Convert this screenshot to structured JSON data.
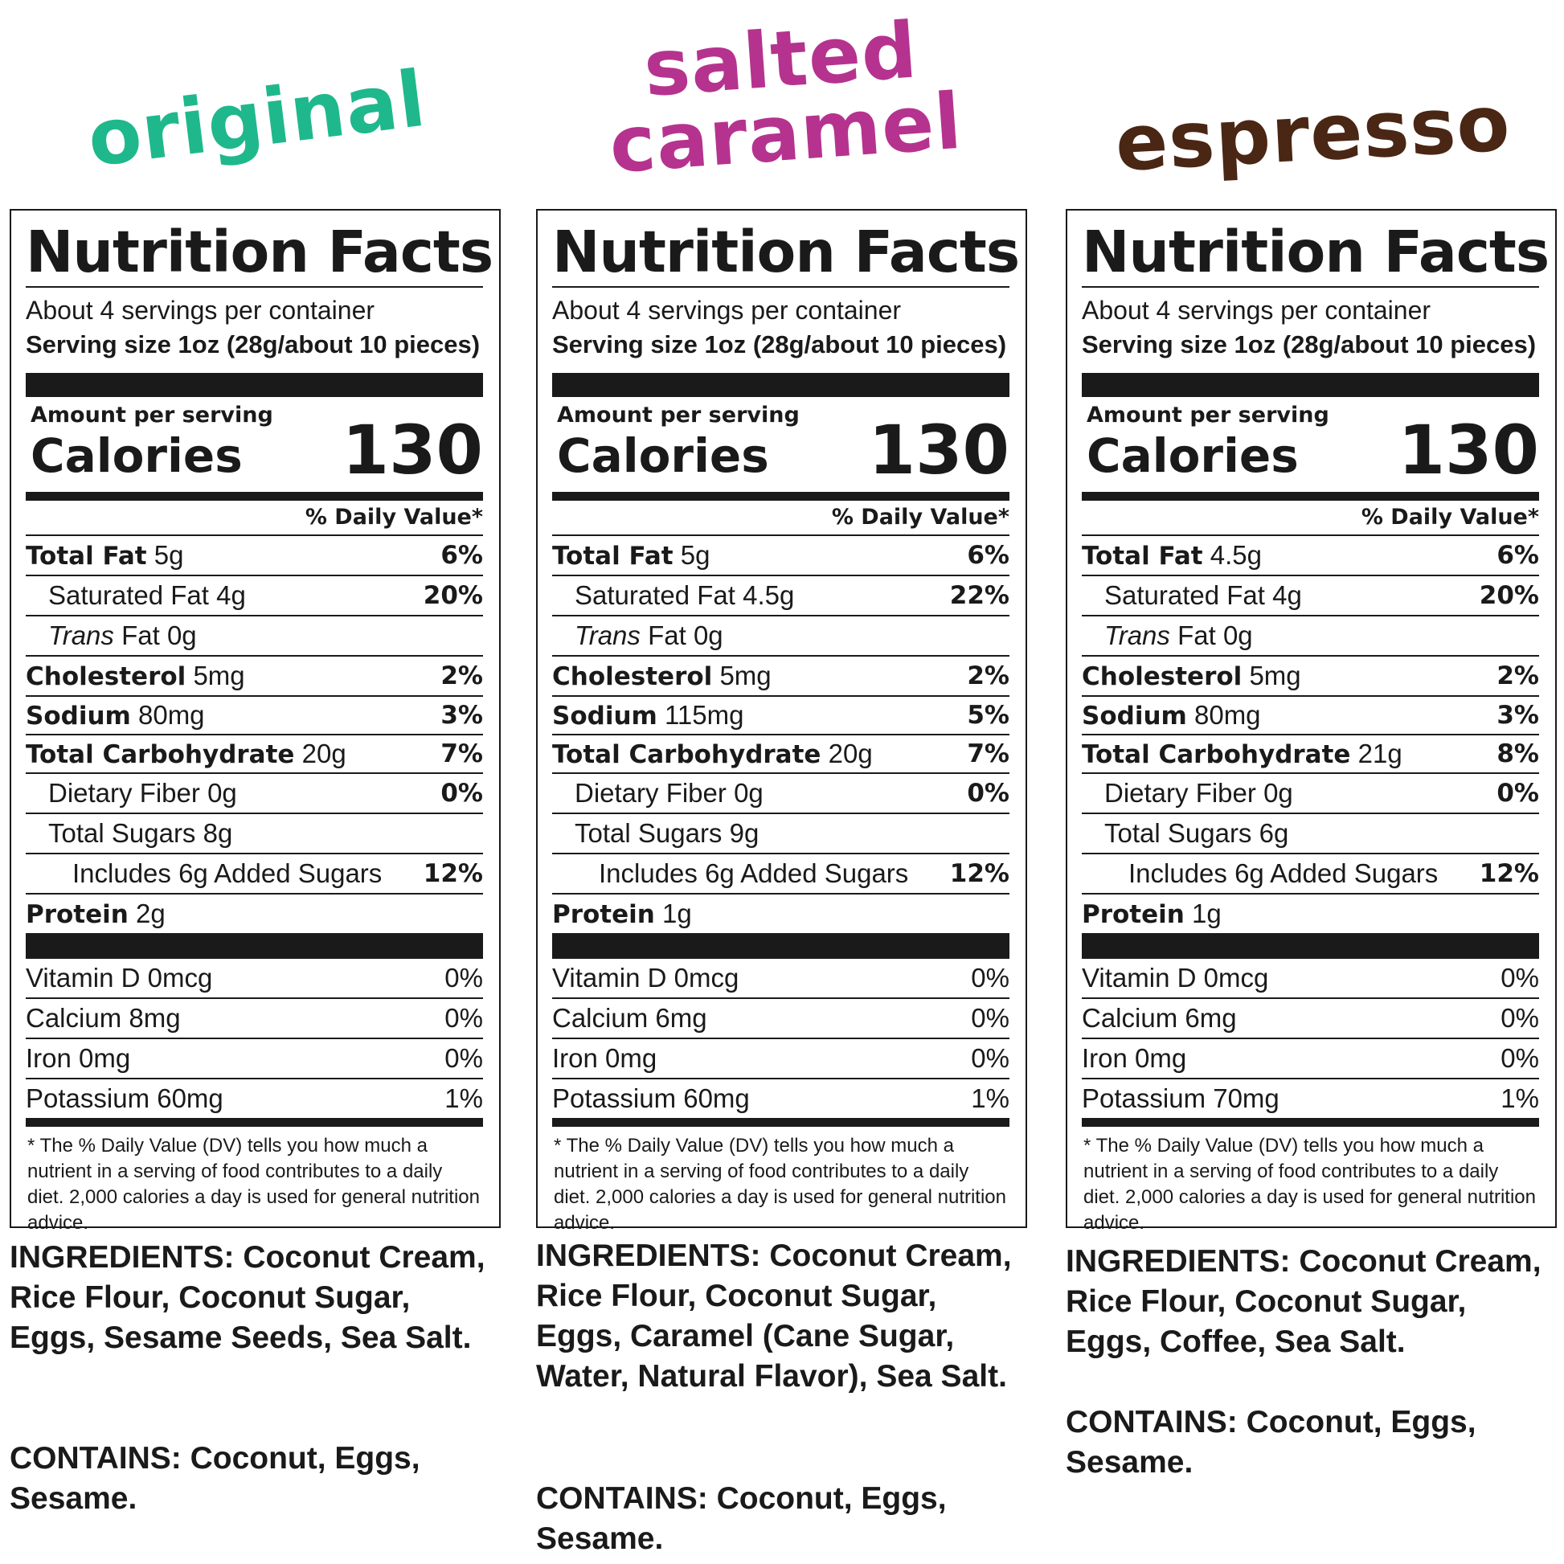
{
  "products": [
    {
      "flavor_lines": [
        "original"
      ],
      "flavor_color": "#1fb88c",
      "title": "Nutrition Facts",
      "servings_per_container": "About 4 servings per container",
      "serving_size": "Serving size 1oz (28g/about 10 pieces)",
      "amount_per_serving": "Amount per serving",
      "calories_label": "Calories",
      "calories": "130",
      "dv_header": "% Daily Value*",
      "total_fat": "5g",
      "total_fat_dv": "6%",
      "sat_fat": "4g",
      "sat_fat_dv": "20%",
      "trans_fat": "0g",
      "cholesterol": "5mg",
      "cholesterol_dv": "2%",
      "sodium": "80mg",
      "sodium_dv": "3%",
      "carbs": "20g",
      "carbs_dv": "7%",
      "fiber": "0g",
      "fiber_dv": "0%",
      "sugars": "8g",
      "added_sugars": "Includes 6g Added Sugars",
      "added_sugars_dv": "12%",
      "protein": "2g",
      "vitamin_d": "Vitamin D 0mcg",
      "vitamin_d_dv": "0%",
      "calcium": "Calcium 8mg",
      "calcium_dv": "0%",
      "iron": "Iron 0mg",
      "iron_dv": "0%",
      "potassium": "Potassium 60mg",
      "potassium_dv": "1%",
      "footnote": "* The % Daily Value (DV) tells you how much a nutrient in a serving of food contributes to a daily diet. 2,000 calories a day is used for general nutrition advice.",
      "ingredients": "INGREDIENTS: Coconut Cream, Rice Flour, Coconut Sugar, Eggs, Sesame Seeds, Sea Salt.",
      "contains": "CONTAINS: Coconut, Eggs, Sesame."
    },
    {
      "flavor_lines": [
        "salted",
        "caramel"
      ],
      "flavor_color": "#b5338f",
      "title": "Nutrition Facts",
      "servings_per_container": "About 4 servings per container",
      "serving_size": "Serving size 1oz (28g/about 10 pieces)",
      "amount_per_serving": "Amount per serving",
      "calories_label": "Calories",
      "calories": "130",
      "dv_header": "% Daily Value*",
      "total_fat": "5g",
      "total_fat_dv": "6%",
      "sat_fat": "4.5g",
      "sat_fat_dv": "22%",
      "trans_fat": "0g",
      "cholesterol": "5mg",
      "cholesterol_dv": "2%",
      "sodium": "115mg",
      "sodium_dv": "5%",
      "carbs": "20g",
      "carbs_dv": "7%",
      "fiber": "0g",
      "fiber_dv": "0%",
      "sugars": "9g",
      "added_sugars": "Includes 6g Added Sugars",
      "added_sugars_dv": "12%",
      "protein": "1g",
      "vitamin_d": "Vitamin D 0mcg",
      "vitamin_d_dv": "0%",
      "calcium": "Calcium 6mg",
      "calcium_dv": "0%",
      "iron": "Iron 0mg",
      "iron_dv": "0%",
      "potassium": "Potassium 60mg",
      "potassium_dv": "1%",
      "footnote": "* The % Daily Value (DV) tells you how much a nutrient in a serving of food contributes to a daily diet. 2,000 calories a day is used for general nutrition advice.",
      "ingredients": "INGREDIENTS: Coconut Cream, Rice Flour, Coconut Sugar, Eggs, Caramel (Cane Sugar, Water, Natural Flavor), Sea Salt.",
      "contains": "CONTAINS: Coconut, Eggs, Sesame."
    },
    {
      "flavor_lines": [
        "espresso"
      ],
      "flavor_color": "#4a2614",
      "title": "Nutrition Facts",
      "servings_per_container": "About 4 servings per container",
      "serving_size": "Serving size 1oz (28g/about 10 pieces)",
      "amount_per_serving": "Amount per serving",
      "calories_label": "Calories",
      "calories": "130",
      "dv_header": "% Daily Value*",
      "total_fat": "4.5g",
      "total_fat_dv": "6%",
      "sat_fat": "4g",
      "sat_fat_dv": "20%",
      "trans_fat": "0g",
      "cholesterol": "5mg",
      "cholesterol_dv": "2%",
      "sodium": "80mg",
      "sodium_dv": "3%",
      "carbs": "21g",
      "carbs_dv": "8%",
      "fiber": "0g",
      "fiber_dv": "0%",
      "sugars": "6g",
      "added_sugars": "Includes 6g Added Sugars",
      "added_sugars_dv": "12%",
      "protein": "1g",
      "vitamin_d": "Vitamin D 0mcg",
      "vitamin_d_dv": "0%",
      "calcium": "Calcium 6mg",
      "calcium_dv": "0%",
      "iron": "Iron 0mg",
      "iron_dv": "0%",
      "potassium": "Potassium 70mg",
      "potassium_dv": "1%",
      "footnote": "* The % Daily Value (DV) tells you how much a nutrient in a serving of food contributes to a daily diet. 2,000 calories a day is used for general nutrition advice.",
      "ingredients": "INGREDIENTS: Coconut Cream, Rice Flour, Coconut Sugar, Eggs, Coffee, Sea Salt.",
      "contains": "CONTAINS: Coconut, Eggs, Sesame."
    }
  ],
  "labels": {
    "total_fat": "Total Fat",
    "sat_fat": "Saturated Fat",
    "trans_fat_italic": "Trans",
    "trans_fat_rest": "Fat",
    "cholesterol": "Cholesterol",
    "sodium": "Sodium",
    "carbs": "Total Carbohydrate",
    "fiber": "Dietary Fiber",
    "sugars": "Total Sugars",
    "protein": "Protein"
  }
}
